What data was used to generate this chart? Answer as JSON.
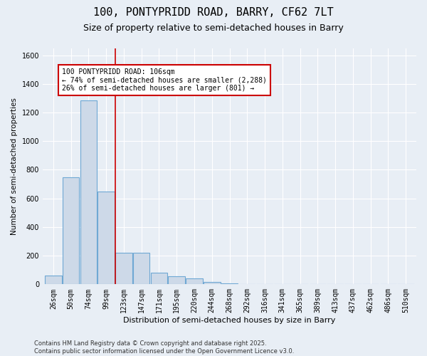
{
  "title1": "100, PONTYPRIDD ROAD, BARRY, CF62 7LT",
  "title2": "Size of property relative to semi-detached houses in Barry",
  "xlabel": "Distribution of semi-detached houses by size in Barry",
  "ylabel": "Number of semi-detached properties",
  "categories": [
    "26sqm",
    "50sqm",
    "74sqm",
    "99sqm",
    "123sqm",
    "147sqm",
    "171sqm",
    "195sqm",
    "220sqm",
    "244sqm",
    "268sqm",
    "292sqm",
    "316sqm",
    "341sqm",
    "365sqm",
    "389sqm",
    "413sqm",
    "437sqm",
    "462sqm",
    "486sqm",
    "510sqm"
  ],
  "values": [
    62,
    750,
    1285,
    648,
    220,
    218,
    80,
    55,
    40,
    15,
    5,
    3,
    2,
    1,
    1,
    0,
    0,
    0,
    0,
    0,
    0
  ],
  "bar_color": "#cdd9e8",
  "bar_edge_color": "#6fa8d4",
  "red_line_x": 3.5,
  "annotation_line1": "100 PONTYPRIDD ROAD: 106sqm",
  "annotation_line2": "← 74% of semi-detached houses are smaller (2,288)",
  "annotation_line3": "26% of semi-detached houses are larger (801) →",
  "annotation_box_color": "#ffffff",
  "annotation_box_edge": "#cc0000",
  "red_line_color": "#cc0000",
  "ylim": [
    0,
    1650
  ],
  "yticks": [
    0,
    200,
    400,
    600,
    800,
    1000,
    1200,
    1400,
    1600
  ],
  "footer1": "Contains HM Land Registry data © Crown copyright and database right 2025.",
  "footer2": "Contains public sector information licensed under the Open Government Licence v3.0.",
  "bg_color": "#e8eef5",
  "plot_bg_color": "#e8eef5",
  "title1_fontsize": 11,
  "title2_fontsize": 9,
  "annotation_fontsize": 7,
  "ylabel_fontsize": 7.5,
  "xlabel_fontsize": 8,
  "tick_fontsize": 7,
  "footer_fontsize": 6
}
